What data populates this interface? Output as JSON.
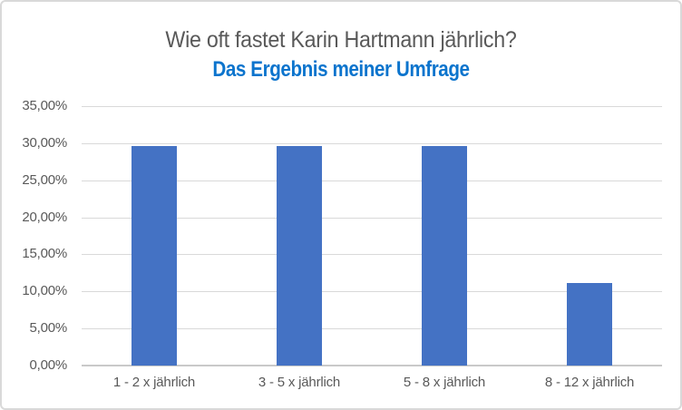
{
  "chart": {
    "title": "Wie oft fastet Karin Hartmann jährlich?",
    "subtitle": "Das Ergebnis meiner Umfrage"
  },
  "colors": {
    "bar": "#4472C4",
    "title": "#595959",
    "subtitle": "#0B74CD",
    "gridline": "#D9D9D9",
    "axis_line": "#C9C9C9",
    "axis_label": "#595959",
    "frame_border": "#D9D9D9",
    "background": "#FFFFFF"
  },
  "chart_data": {
    "type": "bar",
    "title": "Wie oft fastet Karin Hartmann jährlich?",
    "subtitle": "Das Ergebnis meiner Umfrage",
    "categories": [
      "1 - 2 x jährlich",
      "3 - 5 x jährlich",
      "5 - 8 x jährlich",
      "8 - 12 x jährlich"
    ],
    "values": [
      29.63,
      29.63,
      29.63,
      11.11
    ],
    "value_unit": "%",
    "number_format": "german-decimal-comma",
    "xlabel": "",
    "ylabel": "",
    "ylim": [
      0,
      35
    ],
    "ytick_step": 5,
    "yticks": [
      "0,00%",
      "5,00%",
      "10,00%",
      "15,00%",
      "20,00%",
      "25,00%",
      "30,00%",
      "35,00%"
    ],
    "grid": true,
    "legend": false
  }
}
